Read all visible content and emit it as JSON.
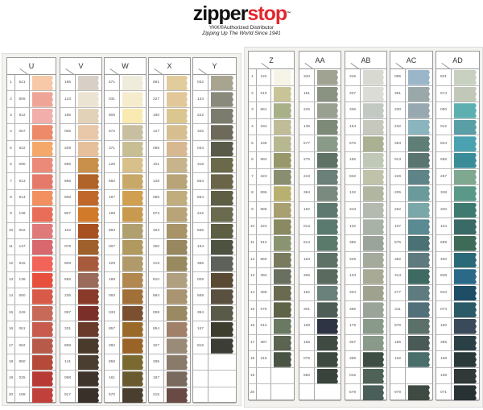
{
  "header": {
    "brand_a": "zipper",
    "brand_b": "stop",
    "tm": "™",
    "line1": "YKK®Authorized Distributor",
    "line2": "Zipping Up The World Since 1941"
  },
  "row_numbers": [
    "1",
    "2",
    "3",
    "4",
    "5",
    "6",
    "7",
    "8",
    "9",
    "10",
    "11",
    "12",
    "13",
    "14",
    "15",
    "16",
    "17",
    "18",
    "19",
    "20"
  ],
  "panels": [
    {
      "columns": [
        {
          "letter": "U",
          "codes": [
            "521",
            "806",
            "812",
            "057",
            "522",
            "090",
            "813",
            "814",
            "136",
            "002",
            "137",
            "816",
            "138",
            "060",
            "249",
            "061",
            "062",
            "850",
            "025",
            "199"
          ],
          "colors": [
            "#f7c9a8",
            "#eea597",
            "#f1aeaa",
            "#ec8a6a",
            "#f4a86a",
            "#ec8a7a",
            "#e57a6a",
            "#f29060",
            "#e86e5a",
            "#e07a7a",
            "#d8676e",
            "#f2645a",
            "#e8503e",
            "#d85a48",
            "#c86a5a",
            "#c85a4e",
            "#b85a4a",
            "#b64a3a",
            "#b83a36",
            "#c0403c"
          ]
        },
        {
          "letter": "V",
          "codes": [
            "186",
            "123",
            "185",
            "005",
            "209",
            "895",
            "856",
            "808",
            "807",
            "102",
            "079",
            "809",
            "855",
            "236",
            "097",
            "331",
            "868",
            "141",
            "088",
            "917"
          ],
          "colors": [
            "#d8d0c6",
            "#ece4d2",
            "#e2d2b8",
            "#e8c8a8",
            "#e6c09a",
            "#c8904a",
            "#b0642a",
            "#c0682c",
            "#d07a2a",
            "#a85020",
            "#a0602c",
            "#a85a3c",
            "#9a6a5a",
            "#8a3a28",
            "#7a3028",
            "#6a3a2a",
            "#4a3a2c",
            "#4a3e30",
            "#3e342c",
            "#3a302a"
          ]
        },
        {
          "letter": "W",
          "codes": [
            "571",
            "031",
            "805",
            "572",
            "371",
            "125",
            "892",
            "167",
            "189",
            "893",
            "007",
            "229",
            "188",
            "093",
            "033",
            "857",
            "092",
            "858",
            "161",
            "570"
          ],
          "colors": [
            "#f0ecdc",
            "#f4eccc",
            "#f8eab0",
            "#c8bea0",
            "#c8be94",
            "#d8c08a",
            "#c8a868",
            "#d0a050",
            "#c89a50",
            "#b0a070",
            "#b09a60",
            "#b09a6a",
            "#b08850",
            "#a07038",
            "#7a5030",
            "#9a6a2a",
            "#9a6428",
            "#7a6a30",
            "#6a5a30",
            "#4a3e2e"
          ]
        },
        {
          "letter": "X",
          "codes": [
            "891",
            "227",
            "180",
            "127",
            "098",
            "101",
            "128",
            "085",
            "573",
            "203",
            "300",
            "219",
            "810",
            "894",
            "008",
            "854",
            "327",
            "295",
            "187",
            "215"
          ],
          "colors": [
            "#e2cc9c",
            "#e2c898",
            "#dcc690",
            "#d6be90",
            "#d8b890",
            "#c8b48c",
            "#b8a478",
            "#c0ac7c",
            "#b8a478",
            "#a89468",
            "#988860",
            "#988a5e",
            "#b0a080",
            "#a89470",
            "#9a8a64",
            "#a08068",
            "#9a8a78",
            "#8a7a6a",
            "#7a6a5e",
            "#6a4a44"
          ]
        },
        {
          "letter": "Y",
          "codes": [
            "032",
            "134",
            "222",
            "325",
            "034",
            "318",
            "563",
            "564",
            "242",
            "565",
            "194",
            "365",
            "009",
            "569",
            "394",
            "157",
            "916",
            "",
            "",
            ""
          ],
          "colors": [
            "#a8a490",
            "#8a8a7c",
            "#7c7c6e",
            "#6e6a5a",
            "#5a5a48",
            "#6a6a4a",
            "#6a6448",
            "#5e5e44",
            "#6a6a4e",
            "#5e5e44",
            "#4e5240",
            "#5e605a",
            "#5a4a34",
            "#5a5040",
            "#5a5a48",
            "#3e3e2e",
            "#3c3e36",
            null,
            null,
            null
          ]
        }
      ]
    },
    {
      "columns": [
        {
          "letter": "Z",
          "codes": [
            "122",
            "010",
            "561",
            "334",
            "235",
            "684",
            "323",
            "896",
            "886",
            "324",
            "912",
            "860",
            "392",
            "399",
            "076",
            "014",
            "387",
            "315",
            "",
            ""
          ],
          "colors": [
            "#f6f4e6",
            "#c8c498",
            "#a8b088",
            "#c0bc98",
            "#b8b890",
            "#98986a",
            "#8a8e70",
            "#b8b070",
            "#a8a070",
            "#8a8a62",
            "#8a9470",
            "#7a7a5e",
            "#6a7060",
            "#6a6a50",
            "#5e6448",
            "#6a7a62",
            "#5a6450",
            "#4a5444",
            null,
            null
          ]
        },
        {
          "letter": "AA",
          "codes": [
            "340",
            "181",
            "225",
            "135",
            "577",
            "275",
            "243",
            "384",
            "192",
            "013",
            "914",
            "183",
            "306",
            "182",
            "301",
            "169",
            "156",
            "075",
            "580",
            ""
          ],
          "colors": [
            "#a0a292",
            "#8a9282",
            "#9aa090",
            "#7e8a78",
            "#8a9a88",
            "#5e7266",
            "#6a8078",
            "#7a8a7e",
            "#5e7a70",
            "#5a7a70",
            "#5a7a6c",
            "#5e7268",
            "#5a6a5e",
            "#6a807a",
            "#4e5e56",
            "#2e3444",
            "#3e4a42",
            "#3e4a40",
            "#3a443c",
            null
          ]
        },
        {
          "letter": "AB",
          "codes": [
            "316",
            "337",
            "336",
            "154",
            "576",
            "165",
            "832",
            "132",
            "343",
            "119",
            "386",
            "329",
            "133",
            "204",
            "396",
            "179",
            "307",
            "389",
            "015",
            "579"
          ],
          "colors": [
            "#d8dad2",
            "#dcdcd6",
            "#c2c8c2",
            "#c6c8be",
            "#aab092",
            "#c0c8b8",
            "#c0c2aa",
            "#b0b6a0",
            "#b4bab0",
            "#a8b2a6",
            "#9aa49a",
            "#a4aa9c",
            "#a8aa96",
            "#a0a290",
            "#9aa498",
            "#8a9a8a",
            "#8a9a8a",
            "#3e4e44",
            "#4e6258",
            "#4a5e5a"
          ]
        },
        {
          "letter": "AC",
          "codes": [
            "095",
            "361",
            "330",
            "232",
            "353",
            "913",
            "226",
            "205",
            "262",
            "107",
            "575",
            "382",
            "313",
            "277",
            "311",
            "576",
            "155",
            "118",
            "",
            "979"
          ],
          "colors": [
            "#9ab6c8",
            "#9aa8aa",
            "#98a8b0",
            "#8ab4be",
            "#5e7e76",
            "#5a7470",
            "#5e8488",
            "#6a9a9a",
            "#7aa8a8",
            "#5a8a92",
            "#4a7274",
            "#5e7a7e",
            "#3e6a62",
            "#5e7c80",
            "#52707a",
            "#5a7068",
            "#4a5a56",
            "#4a6e6a",
            null,
            "#3e4a42"
          ]
        },
        {
          "letter": "AD",
          "codes": [
            "831",
            "574",
            "050",
            "012",
            "834",
            "555",
            "257",
            "328",
            "320",
            "104",
            "689",
            "400",
            "838",
            "910",
            "074",
            "160",
            "395",
            "168",
            "158",
            "071"
          ],
          "colors": [
            "#c8d0c0",
            "#c2c8b8",
            "#5eb0b0",
            "#5a9ea6",
            "#4aa2b0",
            "#3a8c98",
            "#7ea890",
            "#5a9888",
            "#3e7a70",
            "#3a6a66",
            "#3e6a58",
            "#2a6a78",
            "#2a6a88",
            "#1e4e66",
            "#2a5a68",
            "#3a4a5a",
            "#2a4046",
            "#2a3a3a",
            "#303838",
            "#283234"
          ]
        }
      ]
    }
  ]
}
